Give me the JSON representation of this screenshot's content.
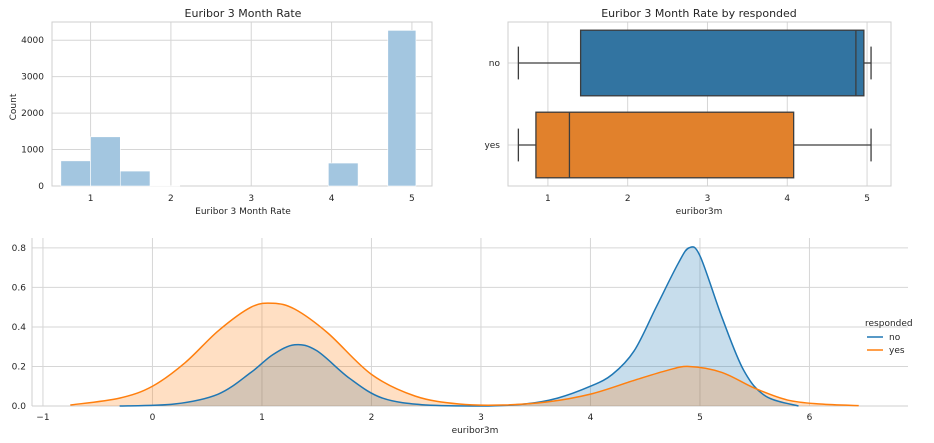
{
  "chart_data": [
    {
      "type": "bar",
      "title": "Euribor 3 Month Rate",
      "xlabel": "Euribor 3 Month Rate",
      "ylabel": "Count",
      "xlim": [
        0.52,
        5.25
      ],
      "ylim": [
        0,
        4500
      ],
      "xticks": [
        1,
        2,
        3,
        4,
        5
      ],
      "yticks": [
        0,
        1000,
        2000,
        3000,
        4000
      ],
      "bar_color": "#a3c6e0",
      "grid": true,
      "bins": [
        {
          "x0": 0.63,
          "x1": 1.0,
          "count": 690
        },
        {
          "x0": 1.0,
          "x1": 1.37,
          "count": 1350
        },
        {
          "x0": 1.37,
          "x1": 1.74,
          "count": 410
        },
        {
          "x0": 1.74,
          "x1": 2.11,
          "count": 5
        },
        {
          "x0": 2.11,
          "x1": 2.48,
          "count": 0
        },
        {
          "x0": 2.48,
          "x1": 2.85,
          "count": 0
        },
        {
          "x0": 2.85,
          "x1": 3.22,
          "count": 0
        },
        {
          "x0": 3.22,
          "x1": 3.59,
          "count": 0
        },
        {
          "x0": 3.59,
          "x1": 3.96,
          "count": 0
        },
        {
          "x0": 3.96,
          "x1": 4.33,
          "count": 630
        },
        {
          "x0": 4.33,
          "x1": 4.7,
          "count": 0
        },
        {
          "x0": 4.7,
          "x1": 5.05,
          "count": 4270
        }
      ]
    },
    {
      "type": "box",
      "title": "Euribor 3 Month Rate by responded",
      "xlabel": "euribor3m",
      "ylabel": "",
      "xlim": [
        0.5,
        5.3
      ],
      "xticks": [
        1,
        2,
        3,
        4,
        5
      ],
      "categories": [
        "no",
        "yes"
      ],
      "grid": true,
      "boxes": [
        {
          "label": "no",
          "whisker_low": 0.63,
          "q1": 1.41,
          "median": 4.86,
          "q3": 4.96,
          "whisker_high": 5.05,
          "color": "#3274a1"
        },
        {
          "label": "yes",
          "whisker_low": 0.63,
          "q1": 0.85,
          "median": 1.27,
          "q3": 4.08,
          "whisker_high": 5.05,
          "color": "#e1812c"
        }
      ]
    },
    {
      "type": "area",
      "title": "",
      "xlabel": "euribor3m",
      "ylabel": "",
      "xlim": [
        -1.1,
        6.9
      ],
      "ylim": [
        0,
        0.85
      ],
      "xticks": [
        -1,
        0,
        1,
        2,
        3,
        4,
        5,
        6
      ],
      "yticks": [
        0.0,
        0.2,
        0.4,
        0.6,
        0.8
      ],
      "grid": true,
      "legend": {
        "title": "responded",
        "placement": "right"
      },
      "series": [
        {
          "name": "no",
          "color": "#1f77b4",
          "fill": "#c5d9ea",
          "x": [
            -0.3,
            0.2,
            0.6,
            0.9,
            1.1,
            1.3,
            1.5,
            1.8,
            2.1,
            2.5,
            3.0,
            3.4,
            3.7,
            4.0,
            4.2,
            4.4,
            4.6,
            4.8,
            4.9,
            5.0,
            5.2,
            5.4,
            5.6,
            5.9
          ],
          "y": [
            0.0,
            0.01,
            0.06,
            0.17,
            0.26,
            0.31,
            0.28,
            0.14,
            0.04,
            0.005,
            0.0,
            0.01,
            0.04,
            0.1,
            0.16,
            0.28,
            0.5,
            0.72,
            0.8,
            0.76,
            0.45,
            0.18,
            0.05,
            0.0
          ]
        },
        {
          "name": "yes",
          "color": "#ff7f0e",
          "fill": "#fed9b9",
          "x": [
            -0.75,
            -0.3,
            0.0,
            0.3,
            0.6,
            0.9,
            1.1,
            1.3,
            1.6,
            2.0,
            2.4,
            2.8,
            3.2,
            3.6,
            4.0,
            4.4,
            4.7,
            4.9,
            5.2,
            5.5,
            5.8,
            6.1,
            6.45
          ],
          "y": [
            0.005,
            0.04,
            0.1,
            0.22,
            0.38,
            0.5,
            0.52,
            0.49,
            0.37,
            0.16,
            0.05,
            0.01,
            0.005,
            0.02,
            0.06,
            0.13,
            0.18,
            0.2,
            0.17,
            0.09,
            0.03,
            0.01,
            0.002
          ]
        }
      ]
    }
  ]
}
